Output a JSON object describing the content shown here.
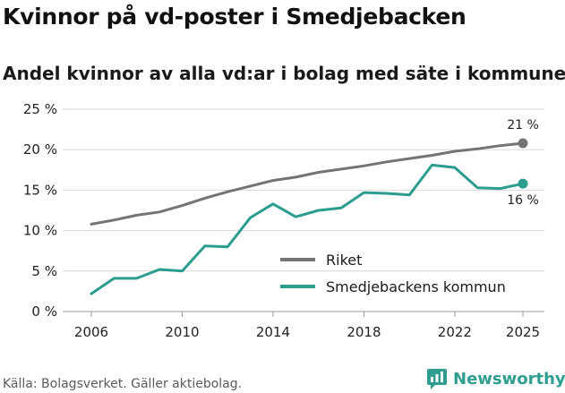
{
  "header": {
    "title": "Kvinnor på vd-poster i Smedjebacken",
    "subtitle": "Andel kvinnor av alla vd:ar i bolag med säte i kommunen"
  },
  "footer": {
    "source": "Källa: Bolagsverket. Gäller aktiebolag.",
    "brand": "Newsworthy"
  },
  "chart_data": {
    "type": "line",
    "title": "Kvinnor på vd-poster i Smedjebacken",
    "subtitle": "Andel kvinnor av alla vd:ar i bolag med säte i kommunen",
    "xlabel": "",
    "ylabel": "",
    "x": [
      2006,
      2007,
      2008,
      2009,
      2010,
      2011,
      2012,
      2013,
      2014,
      2015,
      2016,
      2017,
      2018,
      2019,
      2020,
      2021,
      2022,
      2023,
      2024,
      2025
    ],
    "xticks": [
      2006,
      2010,
      2014,
      2018,
      2022,
      2025
    ],
    "xtick_labels": [
      "2006",
      "2010",
      "2014",
      "2018",
      "2022",
      "2025"
    ],
    "ylim": [
      0,
      25
    ],
    "yticks": [
      0,
      5,
      10,
      15,
      20,
      25
    ],
    "ytick_labels": [
      "0 %",
      "5 %",
      "10 %",
      "15 %",
      "20 %",
      "25 %"
    ],
    "grid": "horizontal",
    "legend_position": "bottom-right",
    "series": [
      {
        "name": "Riket",
        "color": "#737378",
        "values": [
          10.8,
          11.3,
          11.9,
          12.3,
          13.1,
          14.0,
          14.8,
          15.5,
          16.2,
          16.6,
          17.2,
          17.6,
          18.0,
          18.5,
          18.9,
          19.3,
          19.8,
          20.1,
          20.5,
          20.8
        ],
        "end_label": "21 %"
      },
      {
        "name": "Smedjebackens kommun",
        "color": "#2a9d8f",
        "values": [
          2.2,
          4.1,
          4.1,
          5.2,
          5.0,
          8.1,
          8.0,
          11.6,
          13.3,
          11.7,
          12.5,
          12.8,
          14.7,
          14.6,
          14.4,
          18.1,
          17.8,
          15.3,
          15.2,
          15.8
        ],
        "end_label": "16 %"
      }
    ]
  }
}
